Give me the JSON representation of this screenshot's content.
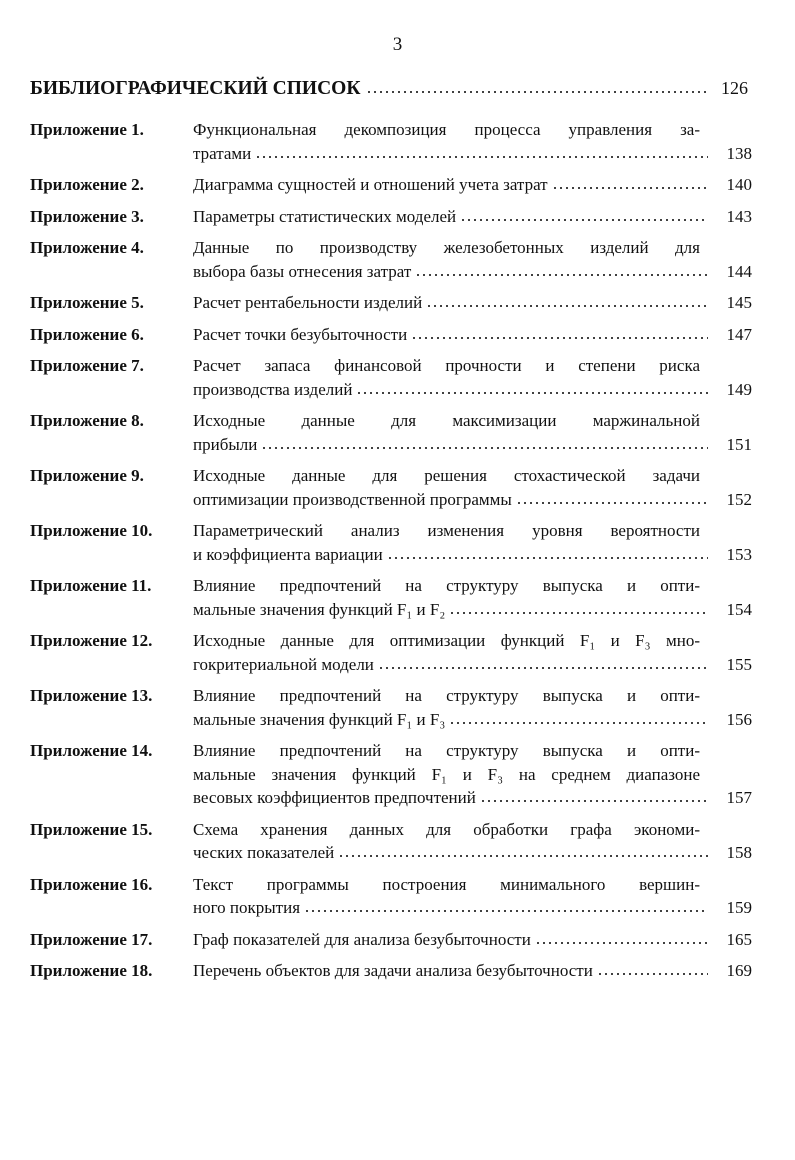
{
  "page_number": "3",
  "heading": {
    "title": "БИБЛИОГРАФИЧЕСКИЙ СПИСОК",
    "page": 126
  },
  "entries": [
    {
      "label": "Приложение 1.",
      "lines": [
        "Функциональная декомпозиция процесса управления за-",
        "тратами"
      ],
      "page": 138
    },
    {
      "label": "Приложение 2.",
      "lines": [
        "Диаграмма сущностей и  отношений учета затрат"
      ],
      "page": 140
    },
    {
      "label": "Приложение 3.",
      "lines": [
        "Параметры статистических моделей"
      ],
      "page": 143
    },
    {
      "label": "Приложение 4.",
      "lines": [
        "Данные по производству железобетонных изделий для",
        "выбора базы отнесения затрат"
      ],
      "page": 144
    },
    {
      "label": "Приложение 5.",
      "lines": [
        "Расчет рентабельности изделий"
      ],
      "page": 145
    },
    {
      "label": "Приложение 6.",
      "lines": [
        "Расчет точки безубыточности"
      ],
      "page": 147
    },
    {
      "label": "Приложение 7.",
      "lines": [
        "Расчет запаса финансовой прочности и степени риска",
        "производства изделий"
      ],
      "page": 149
    },
    {
      "label": "Приложение 8.",
      "lines": [
        "Исходные данные для максимизации маржинальной",
        "прибыли"
      ],
      "page": 151
    },
    {
      "label": "Приложение 9.",
      "lines": [
        "Исходные данные для решения стохастической задачи",
        "оптимизации производственной программы"
      ],
      "page": 152
    },
    {
      "label": "Приложение 10.",
      "lines": [
        "Параметрический анализ изменения уровня вероятности",
        "и коэффициента вариации"
      ],
      "page": 153
    },
    {
      "label": "Приложение 11.",
      "lines": [
        "Влияние предпочтений на структуру выпуска и опти-",
        "мальные значения функций F₁ и F₂"
      ],
      "page": 154
    },
    {
      "label": "Приложение 12.",
      "lines": [
        "Исходные данные для оптимизации функций F₁ и F₃ мно-",
        "гокритериальной модели"
      ],
      "page": 155
    },
    {
      "label": "Приложение 13.",
      "lines": [
        "Влияние предпочтений на структуру выпуска и опти-",
        "мальные значения функций F₁ и F₃"
      ],
      "page": 156
    },
    {
      "label": "Приложение 14.",
      "lines": [
        "Влияние предпочтений на структуру выпуска и опти-",
        "мальные значения функций F₁ и F₃ на среднем диапазоне",
        "весовых коэффициентов предпочтений"
      ],
      "page": 157
    },
    {
      "label": "Приложение 15.",
      "lines": [
        "Схема хранения данных для обработки графа экономи-",
        "ческих показателей"
      ],
      "page": 158
    },
    {
      "label": "Приложение 16.",
      "lines": [
        "Текст программы построения минимального вершин-",
        "ного покрытия"
      ],
      "page": 159
    },
    {
      "label": "Приложение 17.",
      "lines": [
        "Граф показателей для анализа безубыточности"
      ],
      "page": 165
    },
    {
      "label": "Приложение 18.",
      "lines": [
        "Перечень объектов для задачи анализа безубыточности"
      ],
      "page": 169
    }
  ]
}
